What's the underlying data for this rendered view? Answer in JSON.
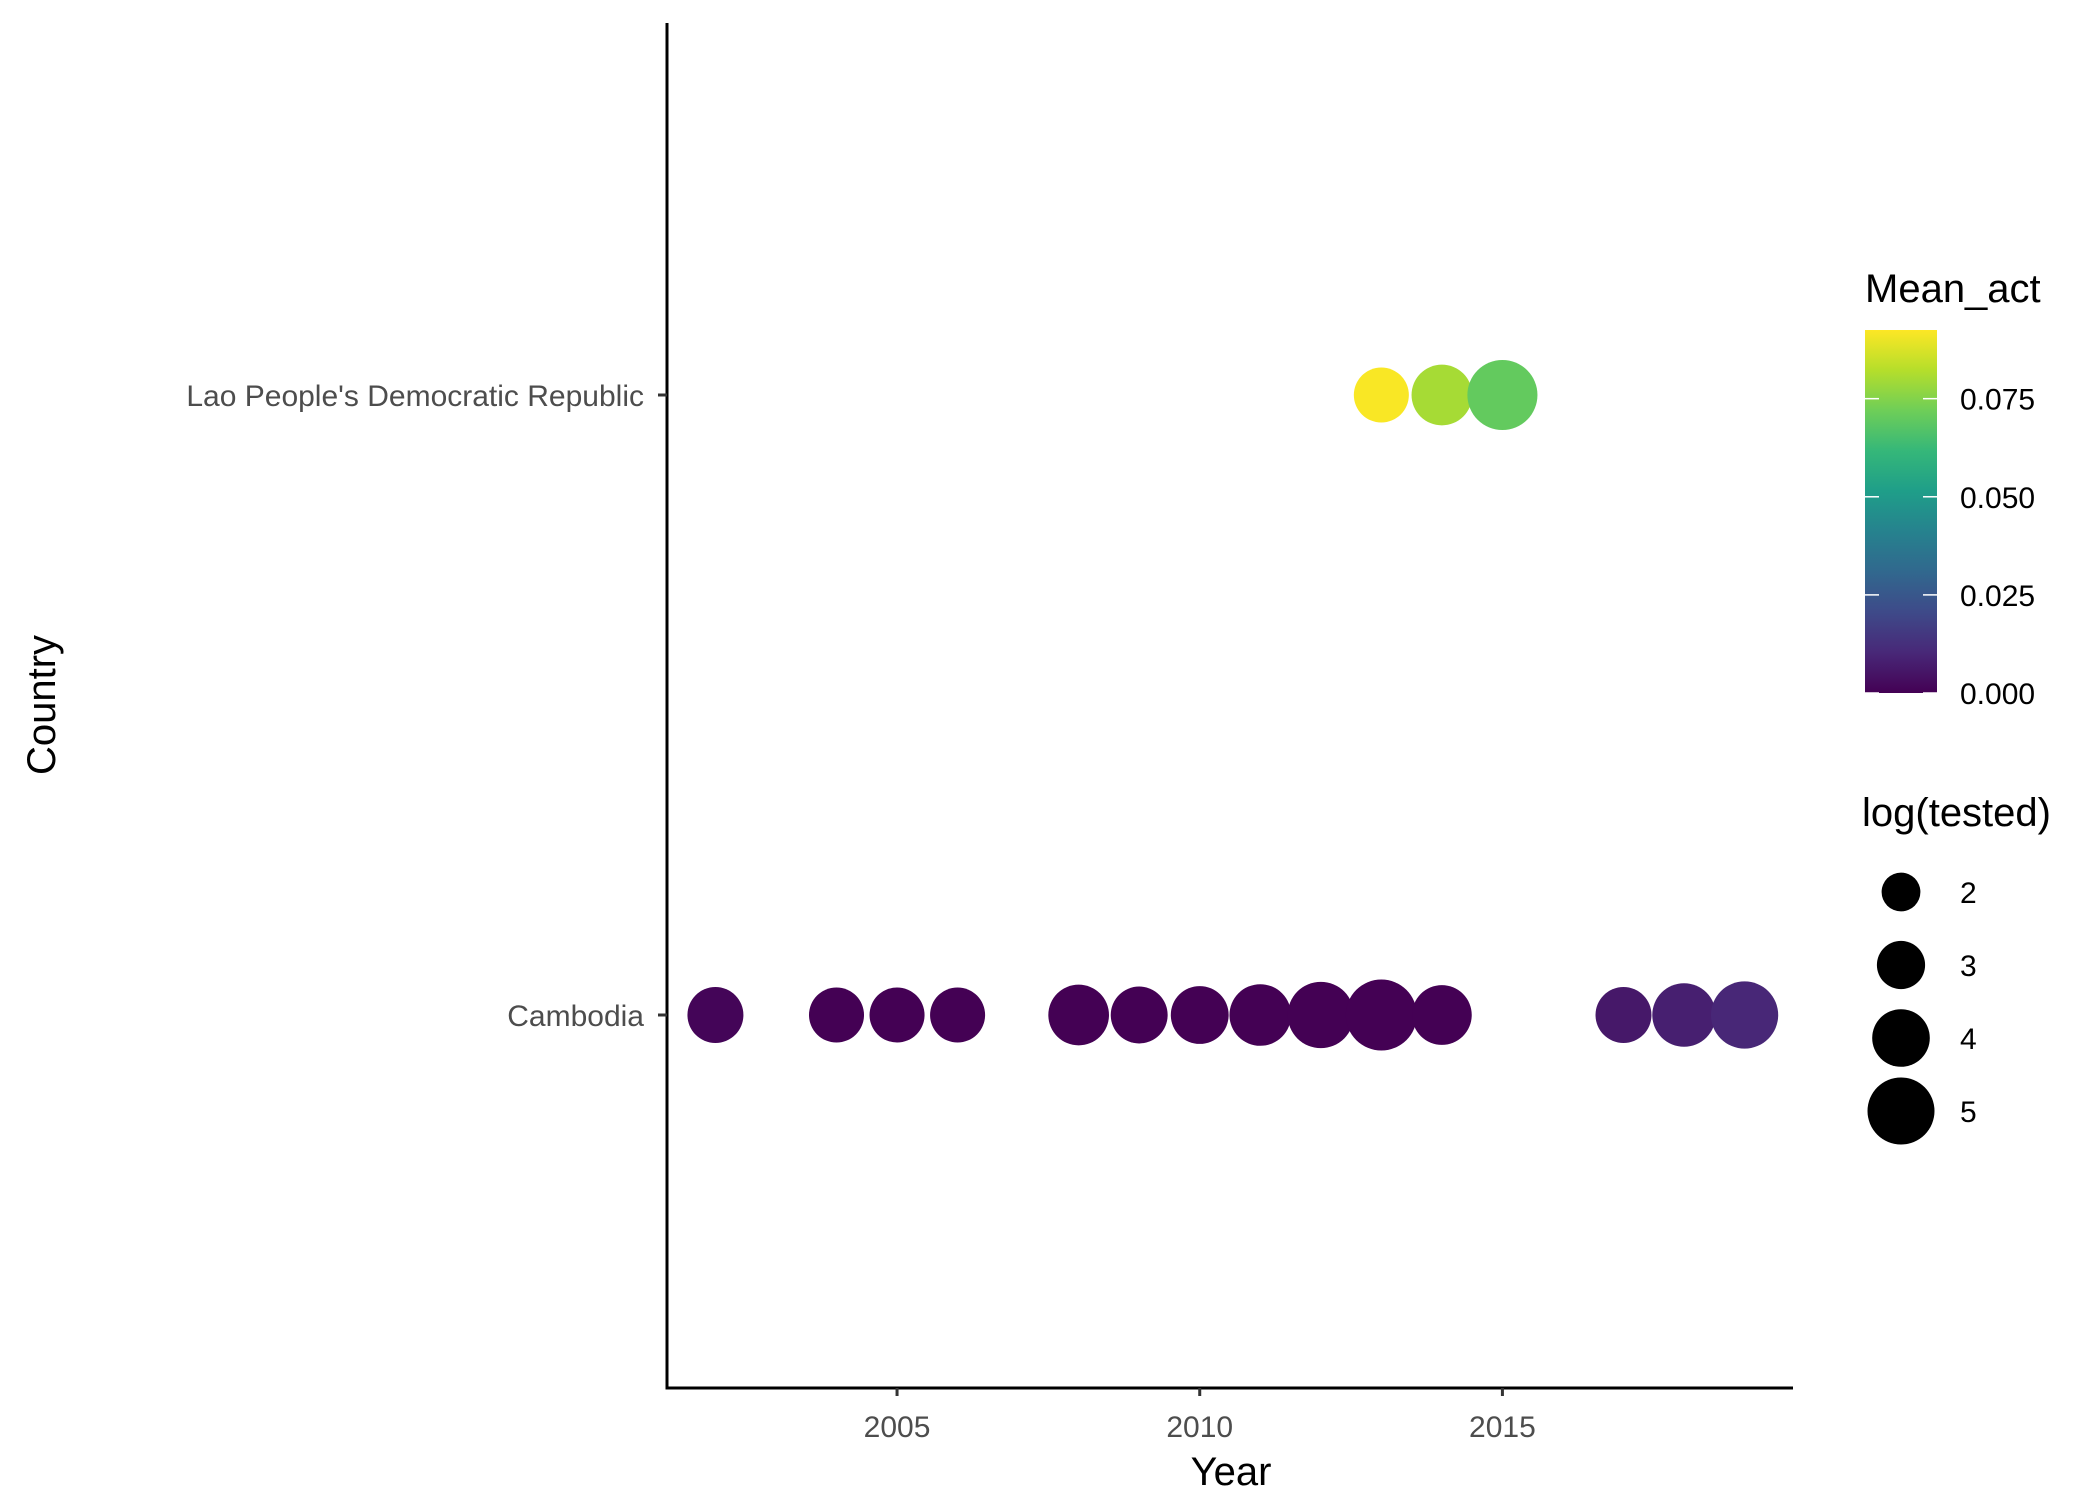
{
  "chart_data": {
    "type": "scatter",
    "xlabel": "Year",
    "ylabel": "Country",
    "x_ticks": [
      2005,
      2010,
      2015
    ],
    "x_range": [
      2001.2,
      2019.8
    ],
    "categories": [
      "Cambodia",
      "Lao People's Democratic Republic"
    ],
    "grid": false,
    "points": [
      {
        "country": "Cambodia",
        "year": 2002,
        "mean_act": 0.001,
        "log_tested": 3.4
      },
      {
        "country": "Cambodia",
        "year": 2004,
        "mean_act": 0.0,
        "log_tested": 3.3
      },
      {
        "country": "Cambodia",
        "year": 2005,
        "mean_act": 0.0,
        "log_tested": 3.3
      },
      {
        "country": "Cambodia",
        "year": 2006,
        "mean_act": 0.0,
        "log_tested": 3.3
      },
      {
        "country": "Cambodia",
        "year": 2008,
        "mean_act": 0.0,
        "log_tested": 3.9
      },
      {
        "country": "Cambodia",
        "year": 2009,
        "mean_act": 0.0,
        "log_tested": 3.5
      },
      {
        "country": "Cambodia",
        "year": 2010,
        "mean_act": 0.0,
        "log_tested": 3.6
      },
      {
        "country": "Cambodia",
        "year": 2011,
        "mean_act": 0.0,
        "log_tested": 4.0
      },
      {
        "country": "Cambodia",
        "year": 2012,
        "mean_act": 0.0,
        "log_tested": 4.5
      },
      {
        "country": "Cambodia",
        "year": 2013,
        "mean_act": 0.0,
        "log_tested": 5.0
      },
      {
        "country": "Cambodia",
        "year": 2014,
        "mean_act": 0.0,
        "log_tested": 3.8
      },
      {
        "country": "Cambodia",
        "year": 2017,
        "mean_act": 0.006,
        "log_tested": 3.4
      },
      {
        "country": "Cambodia",
        "year": 2018,
        "mean_act": 0.008,
        "log_tested": 4.2
      },
      {
        "country": "Cambodia",
        "year": 2019,
        "mean_act": 0.01,
        "log_tested": 4.6
      },
      {
        "country": "Lao People's Democratic Republic",
        "year": 2013,
        "mean_act": 0.092,
        "log_tested": 3.3
      },
      {
        "country": "Lao People's Democratic Republic",
        "year": 2014,
        "mean_act": 0.08,
        "log_tested": 3.9
      },
      {
        "country": "Lao People's Democratic Republic",
        "year": 2015,
        "mean_act": 0.07,
        "log_tested": 4.9
      }
    ],
    "color_legend": {
      "title": "Mean_act",
      "breaks": [
        "0.000",
        "0.025",
        "0.050",
        "0.075"
      ],
      "break_values": [
        0.0,
        0.025,
        0.05,
        0.075
      ],
      "range": [
        0.0,
        0.0925
      ],
      "palette": [
        "#440154",
        "#482878",
        "#3e4a89",
        "#31688e",
        "#26828e",
        "#1f9e89",
        "#35b779",
        "#6ece58",
        "#b5de2b",
        "#fde725"
      ]
    },
    "size_legend": {
      "title": "log(tested)",
      "breaks": [
        "2",
        "3",
        "4",
        "5"
      ],
      "break_values": [
        2,
        3,
        4,
        5
      ]
    }
  }
}
